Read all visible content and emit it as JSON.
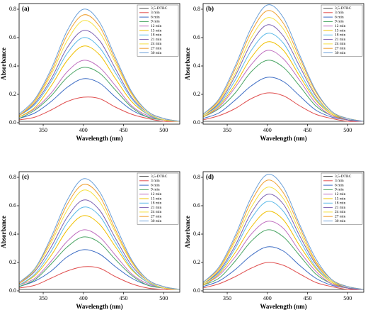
{
  "chart_data": [
    {
      "type": "line",
      "panel_label": "(a)",
      "x_label": "Wavelength (nm)",
      "y_label": "Absorbance",
      "x": [
        320,
        340,
        360,
        380,
        400,
        420,
        440,
        460,
        480,
        500,
        520
      ],
      "xlim": [
        320,
        520
      ],
      "xticks": [
        350,
        400,
        450,
        500
      ],
      "ylim": [
        -0.01,
        0.84
      ],
      "yticks": [
        {
          "value": 0,
          "label": "0.0"
        },
        0.2,
        0.4,
        0.6,
        0.8
      ],
      "legend": "upper right",
      "series": [
        {
          "name": "3,5-DTBC",
          "color": "#555555",
          "values": [
            0.01,
            0.01,
            0.01,
            0.01,
            0.01,
            0.01,
            0.01,
            0.01,
            0.01,
            0.01,
            0.01
          ]
        },
        {
          "name": "3 min",
          "color": "#e05050",
          "values": [
            0.02,
            0.04,
            0.09,
            0.15,
            0.18,
            0.17,
            0.11,
            0.06,
            0.03,
            0.01,
            0.01
          ]
        },
        {
          "name": "6 min",
          "color": "#3c6cc4",
          "values": [
            0.03,
            0.07,
            0.15,
            0.25,
            0.31,
            0.28,
            0.18,
            0.09,
            0.04,
            0.02,
            0.01
          ]
        },
        {
          "name": "9 min",
          "color": "#4aa564",
          "values": [
            0.03,
            0.09,
            0.19,
            0.32,
            0.39,
            0.35,
            0.23,
            0.11,
            0.04,
            0.02,
            0.01
          ]
        },
        {
          "name": "12 min",
          "color": "#c070c0",
          "values": [
            0.04,
            0.1,
            0.21,
            0.36,
            0.44,
            0.39,
            0.26,
            0.12,
            0.05,
            0.02,
            0.01
          ]
        },
        {
          "name": "15 min",
          "color": "#f0c000",
          "values": [
            0.04,
            0.11,
            0.26,
            0.44,
            0.54,
            0.48,
            0.31,
            0.15,
            0.06,
            0.02,
            0.01
          ]
        },
        {
          "name": "18 min",
          "color": "#59b8e8",
          "values": [
            0.05,
            0.13,
            0.29,
            0.49,
            0.6,
            0.53,
            0.35,
            0.17,
            0.06,
            0.02,
            0.01
          ]
        },
        {
          "name": "21 min",
          "color": "#7b5fb0",
          "values": [
            0.05,
            0.14,
            0.31,
            0.53,
            0.65,
            0.58,
            0.38,
            0.18,
            0.07,
            0.02,
            0.01
          ]
        },
        {
          "name": "24 min",
          "color": "#f5e040",
          "values": [
            0.05,
            0.15,
            0.34,
            0.58,
            0.72,
            0.64,
            0.42,
            0.2,
            0.07,
            0.02,
            0.01
          ]
        },
        {
          "name": "27 min",
          "color": "#f0a030",
          "values": [
            0.05,
            0.16,
            0.36,
            0.62,
            0.76,
            0.68,
            0.44,
            0.21,
            0.08,
            0.03,
            0.01
          ]
        },
        {
          "name": "30 min",
          "color": "#6a9fd8",
          "values": [
            0.06,
            0.17,
            0.38,
            0.65,
            0.8,
            0.71,
            0.46,
            0.22,
            0.08,
            0.03,
            0.01
          ]
        }
      ]
    },
    {
      "type": "line",
      "panel_label": "(b)",
      "x_label": "Wavelength (nm)",
      "y_label": "Absorbance",
      "x": [
        320,
        340,
        360,
        380,
        400,
        420,
        440,
        460,
        480,
        500,
        520
      ],
      "xlim": [
        320,
        520
      ],
      "xticks": [
        350,
        400,
        450,
        500
      ],
      "ylim": [
        -0.01,
        0.84
      ],
      "yticks": [
        {
          "value": 0,
          "label": "0.0"
        },
        0.2,
        0.4,
        0.6,
        0.8
      ],
      "legend": "upper right",
      "series": [
        {
          "name": "3,5-DTBC",
          "color": "#555555",
          "values": [
            0.01,
            0.01,
            0.01,
            0.01,
            0.01,
            0.01,
            0.01,
            0.01,
            0.01,
            0.01,
            0.01
          ]
        },
        {
          "name": "3 min",
          "color": "#e05050",
          "values": [
            0.02,
            0.05,
            0.1,
            0.17,
            0.21,
            0.19,
            0.12,
            0.06,
            0.03,
            0.01,
            0.01
          ]
        },
        {
          "name": "6 min",
          "color": "#3c6cc4",
          "values": [
            0.03,
            0.07,
            0.16,
            0.26,
            0.32,
            0.29,
            0.19,
            0.09,
            0.04,
            0.02,
            0.01
          ]
        },
        {
          "name": "9 min",
          "color": "#4aa564",
          "values": [
            0.04,
            0.1,
            0.21,
            0.36,
            0.44,
            0.39,
            0.26,
            0.12,
            0.05,
            0.02,
            0.01
          ]
        },
        {
          "name": "12 min",
          "color": "#c070c0",
          "values": [
            0.04,
            0.11,
            0.25,
            0.41,
            0.51,
            0.45,
            0.3,
            0.14,
            0.05,
            0.02,
            0.01
          ]
        },
        {
          "name": "15 min",
          "color": "#f0c000",
          "values": [
            0.04,
            0.12,
            0.27,
            0.46,
            0.57,
            0.51,
            0.33,
            0.16,
            0.06,
            0.02,
            0.01
          ]
        },
        {
          "name": "18 min",
          "color": "#59b8e8",
          "values": [
            0.05,
            0.13,
            0.3,
            0.51,
            0.63,
            0.56,
            0.36,
            0.17,
            0.07,
            0.02,
            0.01
          ]
        },
        {
          "name": "21 min",
          "color": "#7b5fb0",
          "values": [
            0.05,
            0.14,
            0.33,
            0.56,
            0.69,
            0.61,
            0.4,
            0.19,
            0.07,
            0.02,
            0.01
          ]
        },
        {
          "name": "24 min",
          "color": "#f5e040",
          "values": [
            0.05,
            0.15,
            0.35,
            0.6,
            0.74,
            0.66,
            0.43,
            0.2,
            0.07,
            0.03,
            0.01
          ]
        },
        {
          "name": "27 min",
          "color": "#f0a030",
          "values": [
            0.06,
            0.16,
            0.38,
            0.64,
            0.79,
            0.7,
            0.46,
            0.22,
            0.08,
            0.03,
            0.01
          ]
        },
        {
          "name": "30 min",
          "color": "#6a9fd8",
          "values": [
            0.06,
            0.17,
            0.4,
            0.67,
            0.83,
            0.74,
            0.48,
            0.23,
            0.08,
            0.03,
            0.01
          ]
        }
      ]
    },
    {
      "type": "line",
      "panel_label": "(c)",
      "x_label": "Wavelength (nm)",
      "y_label": "Absorbance",
      "x": [
        320,
        340,
        360,
        380,
        400,
        420,
        440,
        460,
        480,
        500,
        520
      ],
      "xlim": [
        320,
        520
      ],
      "xticks": [
        350,
        400,
        450,
        500
      ],
      "ylim": [
        -0.01,
        0.84
      ],
      "yticks": [
        {
          "value": 0,
          "label": "0.0"
        },
        0.2,
        0.4,
        0.6,
        0.8
      ],
      "legend": "upper right",
      "series": [
        {
          "name": "3,5-DTBC",
          "color": "#555555",
          "values": [
            0.01,
            0.01,
            0.01,
            0.01,
            0.01,
            0.01,
            0.01,
            0.01,
            0.01,
            0.01,
            0.01
          ]
        },
        {
          "name": "3 min",
          "color": "#e05050",
          "values": [
            0.02,
            0.04,
            0.09,
            0.14,
            0.17,
            0.16,
            0.1,
            0.05,
            0.02,
            0.01,
            0.01
          ]
        },
        {
          "name": "6 min",
          "color": "#3c6cc4",
          "values": [
            0.03,
            0.07,
            0.14,
            0.24,
            0.29,
            0.26,
            0.17,
            0.09,
            0.04,
            0.02,
            0.01
          ]
        },
        {
          "name": "9 min",
          "color": "#4aa564",
          "values": [
            0.03,
            0.08,
            0.19,
            0.31,
            0.38,
            0.34,
            0.22,
            0.11,
            0.04,
            0.02,
            0.01
          ]
        },
        {
          "name": "12 min",
          "color": "#c070c0",
          "values": [
            0.04,
            0.09,
            0.21,
            0.35,
            0.43,
            0.38,
            0.25,
            0.12,
            0.05,
            0.02,
            0.01
          ]
        },
        {
          "name": "15 min",
          "color": "#f0c000",
          "values": [
            0.04,
            0.11,
            0.25,
            0.43,
            0.53,
            0.47,
            0.31,
            0.15,
            0.06,
            0.02,
            0.01
          ]
        },
        {
          "name": "18 min",
          "color": "#59b8e8",
          "values": [
            0.04,
            0.12,
            0.28,
            0.48,
            0.59,
            0.53,
            0.34,
            0.16,
            0.06,
            0.02,
            0.01
          ]
        },
        {
          "name": "21 min",
          "color": "#7b5fb0",
          "values": [
            0.05,
            0.14,
            0.31,
            0.52,
            0.64,
            0.57,
            0.37,
            0.18,
            0.07,
            0.02,
            0.01
          ]
        },
        {
          "name": "24 min",
          "color": "#f5e040",
          "values": [
            0.05,
            0.15,
            0.34,
            0.57,
            0.71,
            0.63,
            0.41,
            0.2,
            0.07,
            0.02,
            0.01
          ]
        },
        {
          "name": "27 min",
          "color": "#f0a030",
          "values": [
            0.05,
            0.16,
            0.36,
            0.61,
            0.75,
            0.67,
            0.43,
            0.21,
            0.08,
            0.03,
            0.01
          ]
        },
        {
          "name": "30 min",
          "color": "#6a9fd8",
          "values": [
            0.06,
            0.16,
            0.38,
            0.64,
            0.79,
            0.7,
            0.46,
            0.22,
            0.08,
            0.03,
            0.01
          ]
        }
      ]
    },
    {
      "type": "line",
      "panel_label": "(d)",
      "x_label": "Wavelength (nm)",
      "y_label": "Absorbance",
      "x": [
        320,
        340,
        360,
        380,
        400,
        420,
        440,
        460,
        480,
        500,
        520
      ],
      "xlim": [
        320,
        520
      ],
      "xticks": [
        350,
        400,
        450,
        500
      ],
      "ylim": [
        -0.01,
        0.84
      ],
      "yticks": [
        {
          "value": 0,
          "label": "0.0"
        },
        0.2,
        0.4,
        0.6,
        0.8
      ],
      "legend": "upper right",
      "series": [
        {
          "name": "3,5-DTBC",
          "color": "#555555",
          "values": [
            0.01,
            0.01,
            0.01,
            0.01,
            0.01,
            0.01,
            0.01,
            0.01,
            0.01,
            0.01,
            0.01
          ]
        },
        {
          "name": "3 min",
          "color": "#e05050",
          "values": [
            0.02,
            0.05,
            0.1,
            0.16,
            0.2,
            0.18,
            0.12,
            0.06,
            0.03,
            0.01,
            0.01
          ]
        },
        {
          "name": "6 min",
          "color": "#3c6cc4",
          "values": [
            0.03,
            0.07,
            0.15,
            0.25,
            0.31,
            0.28,
            0.18,
            0.09,
            0.04,
            0.02,
            0.01
          ]
        },
        {
          "name": "9 min",
          "color": "#4aa564",
          "values": [
            0.04,
            0.09,
            0.21,
            0.35,
            0.43,
            0.38,
            0.25,
            0.12,
            0.05,
            0.02,
            0.01
          ]
        },
        {
          "name": "12 min",
          "color": "#c070c0",
          "values": [
            0.04,
            0.11,
            0.24,
            0.4,
            0.49,
            0.44,
            0.28,
            0.14,
            0.05,
            0.02,
            0.01
          ]
        },
        {
          "name": "15 min",
          "color": "#f0c000",
          "values": [
            0.04,
            0.12,
            0.27,
            0.45,
            0.56,
            0.5,
            0.32,
            0.16,
            0.06,
            0.02,
            0.01
          ]
        },
        {
          "name": "18 min",
          "color": "#59b8e8",
          "values": [
            0.05,
            0.13,
            0.3,
            0.51,
            0.63,
            0.56,
            0.36,
            0.17,
            0.07,
            0.02,
            0.01
          ]
        },
        {
          "name": "21 min",
          "color": "#7b5fb0",
          "values": [
            0.05,
            0.14,
            0.32,
            0.55,
            0.68,
            0.61,
            0.39,
            0.19,
            0.07,
            0.02,
            0.01
          ]
        },
        {
          "name": "24 min",
          "color": "#f5e040",
          "values": [
            0.05,
            0.15,
            0.35,
            0.59,
            0.73,
            0.65,
            0.42,
            0.2,
            0.07,
            0.03,
            0.01
          ]
        },
        {
          "name": "27 min",
          "color": "#f0a030",
          "values": [
            0.06,
            0.16,
            0.37,
            0.63,
            0.78,
            0.69,
            0.45,
            0.21,
            0.08,
            0.03,
            0.01
          ]
        },
        {
          "name": "30 min",
          "color": "#6a9fd8",
          "values": [
            0.06,
            0.17,
            0.39,
            0.66,
            0.82,
            0.73,
            0.47,
            0.23,
            0.08,
            0.03,
            0.01
          ]
        }
      ]
    }
  ]
}
